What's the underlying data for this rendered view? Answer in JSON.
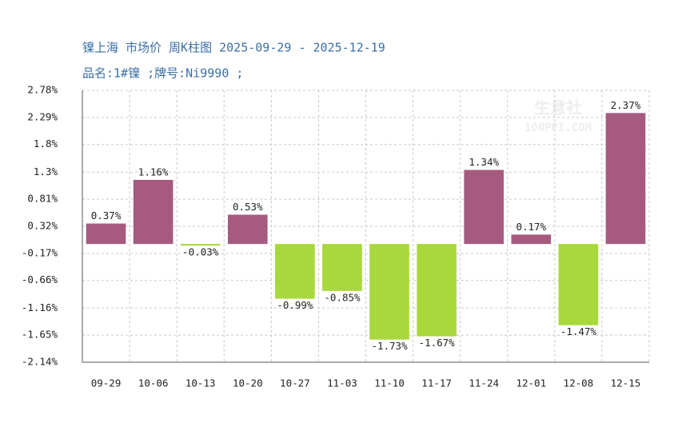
{
  "chart_data": {
    "type": "bar",
    "title": "镍上海 市场价 周K柱图 2025-09-29 - 2025-12-19",
    "subtitle": "品名:1#镍 ;牌号:Ni9990 ;",
    "watermark": [
      "生意社",
      "100PPI.COM"
    ],
    "categories": [
      "09-29",
      "10-06",
      "10-13",
      "10-20",
      "10-27",
      "11-03",
      "11-10",
      "11-17",
      "11-24",
      "12-01",
      "12-08",
      "12-15"
    ],
    "values": [
      0.37,
      1.16,
      -0.03,
      0.53,
      -0.99,
      -0.85,
      -1.73,
      -1.67,
      1.34,
      0.17,
      -1.47,
      2.37
    ],
    "value_labels": [
      "0.37%",
      "1.16%",
      "-0.03%",
      "0.53%",
      "-0.99%",
      "-0.85%",
      "-1.73%",
      "-1.67%",
      "1.34%",
      "0.17%",
      "-1.47%",
      "2.37%"
    ],
    "positive_color": "#a65a80",
    "negative_color": "#a8d83c",
    "ylim": [
      -2.14,
      2.78
    ],
    "yticks": [
      {
        "value": 2.78,
        "label": "2.78%"
      },
      {
        "value": 2.29,
        "label": "2.29%"
      },
      {
        "value": 1.8,
        "label": "1.8%"
      },
      {
        "value": 1.3,
        "label": "1.3%"
      },
      {
        "value": 0.81,
        "label": "0.81%"
      },
      {
        "value": 0.32,
        "label": "0.32%"
      },
      {
        "value": -0.17,
        "label": "-0.17%"
      },
      {
        "value": -0.66,
        "label": "-0.66%"
      },
      {
        "value": -1.16,
        "label": "-1.16%"
      },
      {
        "value": -1.65,
        "label": "-1.65%"
      },
      {
        "value": -2.14,
        "label": "-2.14%"
      }
    ],
    "grid": true
  }
}
